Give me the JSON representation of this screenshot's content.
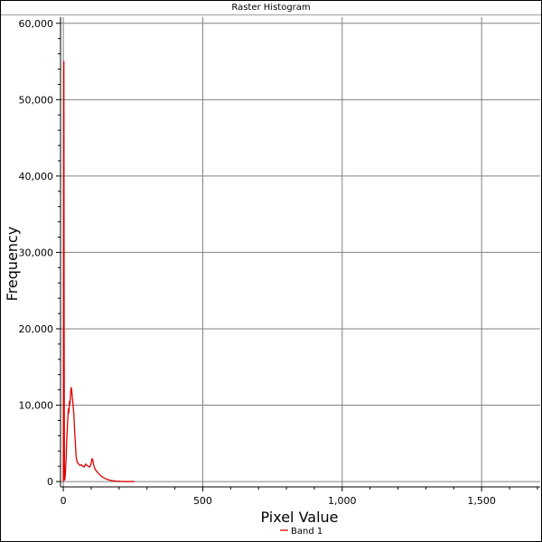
{
  "window": {
    "title": "Raster Histogram"
  },
  "colors": {
    "series": "#e00000",
    "grid": "#808080",
    "axis": "#000000"
  },
  "chart_data": {
    "type": "line",
    "title": "Raster Histogram",
    "xlabel": "Pixel Value",
    "ylabel": "Frequency",
    "xlim": [
      -10,
      1710
    ],
    "ylim": [
      -700,
      60800
    ],
    "x_ticks": [
      {
        "value": 0,
        "label": "0"
      },
      {
        "value": 500,
        "label": "500"
      },
      {
        "value": 1000,
        "label": "1,000"
      },
      {
        "value": 1500,
        "label": "1,500"
      }
    ],
    "y_ticks": [
      {
        "value": 0,
        "label": "0"
      },
      {
        "value": 10000,
        "label": "10,000"
      },
      {
        "value": 20000,
        "label": "20,000"
      },
      {
        "value": 30000,
        "label": "30,000"
      },
      {
        "value": 40000,
        "label": "40,000"
      },
      {
        "value": 50000,
        "label": "50,000"
      },
      {
        "value": 60000,
        "label": "60,000"
      }
    ],
    "grid": true,
    "legend_position": "bottom-center",
    "series": [
      {
        "name": "Band 1",
        "color": "#e00000",
        "x": [
          0,
          1,
          2,
          3,
          4,
          5,
          6,
          7,
          8,
          10,
          12,
          15,
          18,
          20,
          22,
          24,
          26,
          28,
          30,
          32,
          34,
          36,
          38,
          40,
          42,
          44,
          46,
          50,
          55,
          60,
          65,
          70,
          75,
          80,
          85,
          90,
          95,
          100,
          103,
          106,
          108,
          110,
          113,
          116,
          120,
          125,
          130,
          140,
          150,
          160,
          170,
          180,
          190,
          200,
          210,
          220,
          230,
          240,
          250,
          255
        ],
        "y": [
          0,
          30000,
          55000,
          20000,
          300,
          200,
          400,
          800,
          1500,
          3000,
          5200,
          7500,
          9500,
          9000,
          10500,
          10200,
          11500,
          12300,
          12100,
          11000,
          10500,
          9500,
          8800,
          7000,
          5800,
          4500,
          3200,
          2500,
          2300,
          2100,
          2200,
          2000,
          1900,
          2300,
          2100,
          2000,
          1900,
          2400,
          3000,
          2800,
          2300,
          2000,
          1700,
          1500,
          1350,
          1100,
          900,
          600,
          400,
          250,
          150,
          100,
          50,
          30,
          10,
          5,
          5,
          0,
          0,
          0
        ]
      }
    ]
  }
}
